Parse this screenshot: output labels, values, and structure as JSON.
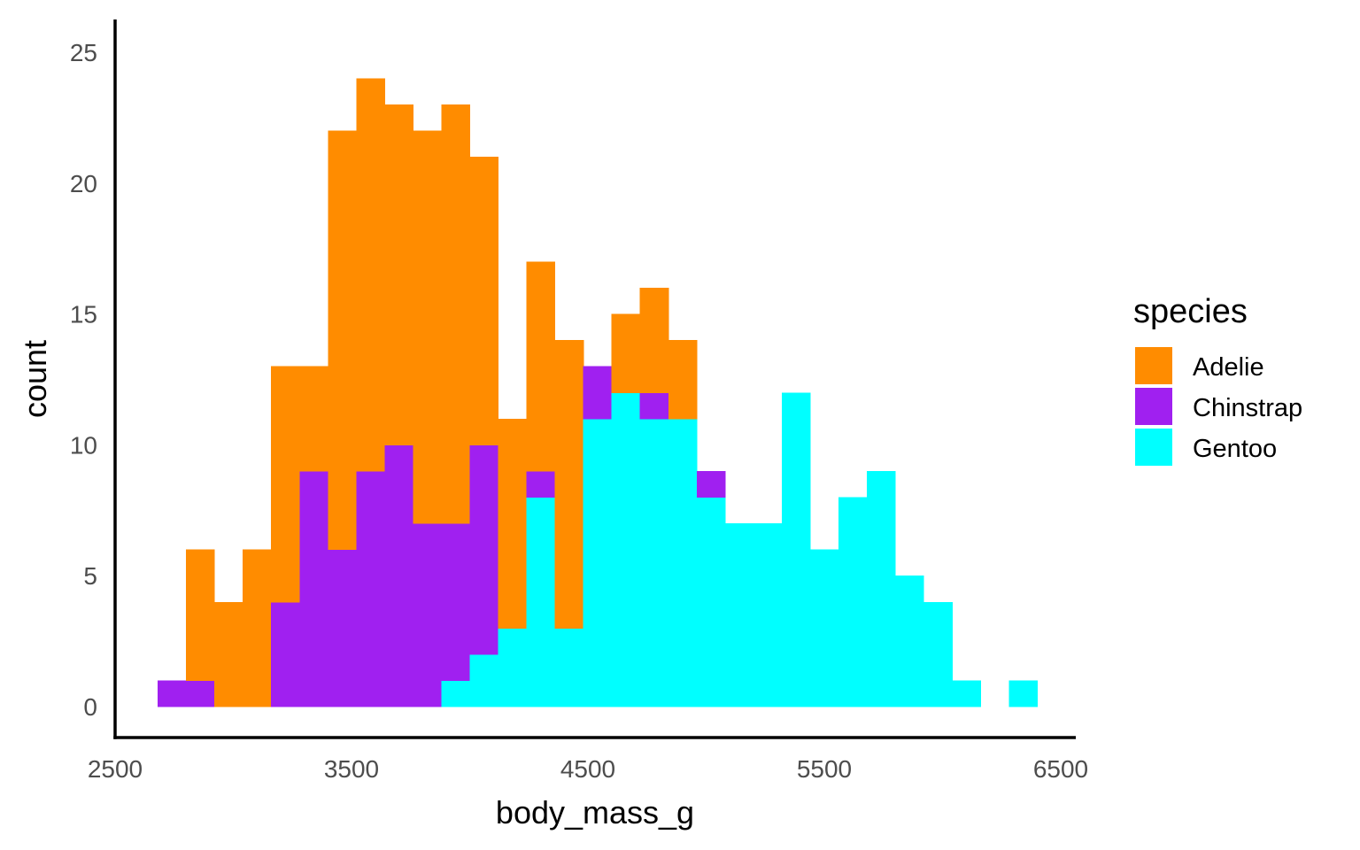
{
  "chart_data": {
    "type": "bar",
    "subtype": "stacked histogram",
    "xlabel": "body_mass_g",
    "ylabel": "count",
    "xlim": [
      2500,
      6500
    ],
    "ylim": [
      0,
      25
    ],
    "x_ticks": [
      2500,
      3500,
      4500,
      5500,
      6500
    ],
    "y_ticks": [
      0,
      5,
      10,
      15,
      20,
      25
    ],
    "grid": false,
    "bin_width": 120,
    "bin_start": 2680,
    "legend": {
      "title": "species",
      "position": "right"
    },
    "series": [
      {
        "name": "Adelie",
        "color": "#ff8c00",
        "values": [
          0,
          5,
          4,
          6,
          9,
          4,
          16,
          15,
          13,
          15,
          16,
          11,
          8,
          8,
          11,
          0,
          3,
          4,
          3,
          0,
          0,
          0,
          0,
          0,
          0,
          0,
          0,
          0,
          0,
          0,
          0,
          0,
          0,
          0,
          0
        ]
      },
      {
        "name": "Chinstrap",
        "color": "#a020f0",
        "values": [
          1,
          1,
          0,
          0,
          4,
          9,
          6,
          9,
          10,
          7,
          6,
          8,
          0,
          1,
          0,
          2,
          0,
          1,
          0,
          1,
          0,
          0,
          0,
          0,
          0,
          0,
          0,
          0,
          0,
          0,
          0,
          0,
          0,
          0,
          0
        ]
      },
      {
        "name": "Gentoo",
        "color": "#00ffff",
        "values": [
          0,
          0,
          0,
          0,
          0,
          0,
          0,
          0,
          0,
          0,
          1,
          2,
          3,
          8,
          3,
          11,
          12,
          11,
          11,
          8,
          7,
          7,
          12,
          6,
          8,
          9,
          5,
          4,
          1,
          0,
          1,
          0,
          0,
          0,
          0
        ]
      }
    ]
  }
}
